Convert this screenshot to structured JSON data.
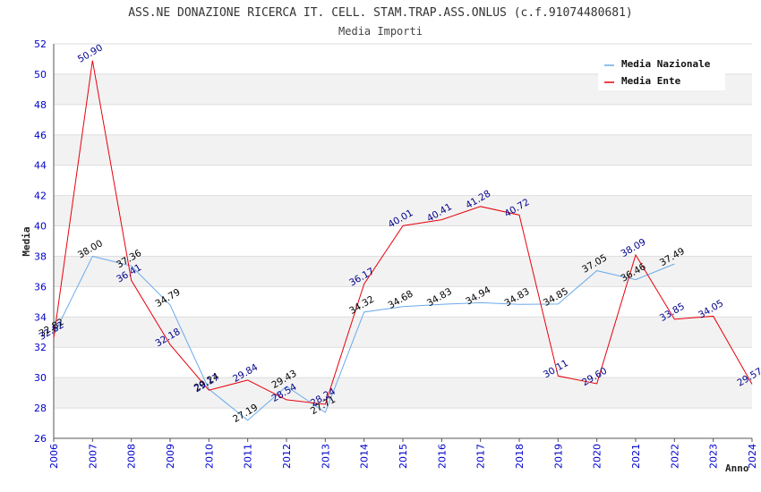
{
  "chart_data": {
    "type": "line",
    "title": "ASS.NE DONAZIONE RICERCA IT. CELL. STAM.TRAP.ASS.ONLUS (c.f.91074480681)",
    "subtitle": "Media Importi",
    "xlabel": "Anno",
    "ylabel": "Media",
    "ylim": [
      26,
      52
    ],
    "yticks": [
      "26",
      "28",
      "30",
      "32",
      "34",
      "36",
      "38",
      "40",
      "42",
      "44",
      "46",
      "48",
      "50",
      "52"
    ],
    "x": [
      "2006",
      "2007",
      "2008",
      "2009",
      "2010",
      "2011",
      "2012",
      "2013",
      "2014",
      "2015",
      "2016",
      "2017",
      "2018",
      "2019",
      "2020",
      "2021",
      "2022",
      "2023",
      "2024"
    ],
    "legend_position": "top-right",
    "series": [
      {
        "name": "Media Nazionale",
        "color": "#6aaae8",
        "label_color": "#000000",
        "values": [
          32.82,
          38.0,
          37.36,
          34.79,
          29.24,
          27.19,
          29.43,
          27.71,
          34.32,
          34.68,
          34.83,
          34.94,
          34.83,
          34.85,
          37.05,
          36.46,
          37.49,
          null,
          null
        ],
        "labels": [
          "32.82",
          "38.00",
          "37.36",
          "34.79",
          "29.24",
          "27.19",
          "29.43",
          "27.71",
          "34.32",
          "34.68",
          "34.83",
          "34.94",
          "34.83",
          "34.85",
          "37.05",
          "36.46",
          "37.49",
          null,
          null
        ]
      },
      {
        "name": "Media Ente",
        "color": "#e8000b",
        "label_color": "#00008b",
        "values": [
          32.62,
          50.9,
          36.41,
          32.18,
          29.17,
          29.84,
          28.54,
          28.24,
          36.17,
          40.01,
          40.41,
          41.28,
          40.72,
          30.11,
          29.6,
          38.09,
          33.85,
          34.05,
          29.57
        ],
        "labels": [
          "32.62",
          "50.90",
          "36.41",
          "32.18",
          "29.17",
          "29.84",
          "28.54",
          "28.24",
          "36.17",
          "40.01",
          "40.41",
          "41.28",
          "40.72",
          "30.11",
          "29.60",
          "38.09",
          "33.85",
          "34.05",
          "29.57"
        ]
      }
    ]
  }
}
